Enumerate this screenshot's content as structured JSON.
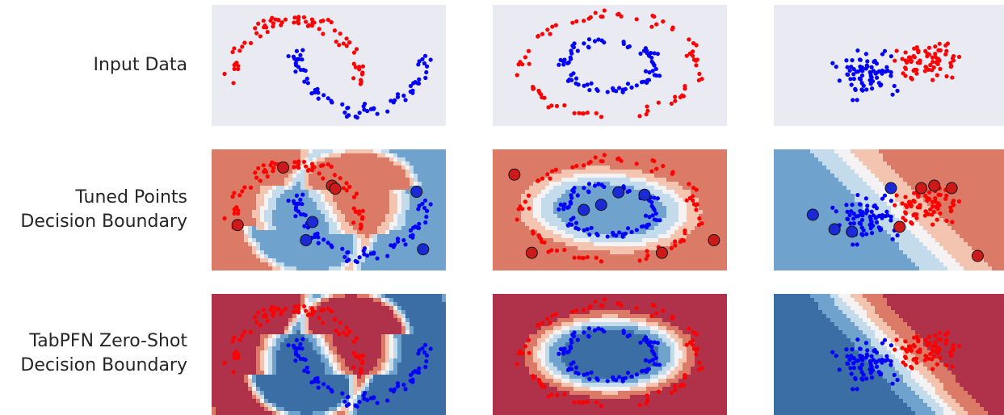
{
  "row_labels": [
    "Input Data",
    "Tuned Points\nDecision Boundary",
    "TabPFN Zero-Shot\nDecision Boundary"
  ],
  "colors": {
    "class_0": "#ff0000",
    "class_1": "#0000ff",
    "panel_background": "#eaeaf2",
    "region_palette": [
      "#3b6ea5",
      "#6fa3ce",
      "#c4dbec",
      "#f4f2f2",
      "#f3c4b0",
      "#dc7a68",
      "#b0324a"
    ]
  },
  "chart_data": [
    {
      "type": "scatter",
      "dataset": "moons",
      "row": "Input Data",
      "grid": false,
      "series": [
        {
          "class": 0,
          "marker": "small-dot",
          "color": "#ff0000",
          "x": [
            -1.0,
            -0.95,
            -0.85,
            -0.75,
            -0.6,
            -0.45,
            -0.3,
            -0.15,
            0.0,
            0.15,
            0.3,
            0.45,
            0.6,
            0.72,
            0.82,
            0.9,
            0.95,
            1.0
          ],
          "y": [
            0.1,
            0.3,
            0.5,
            0.65,
            0.78,
            0.88,
            0.95,
            0.99,
            1.0,
            0.99,
            0.95,
            0.88,
            0.78,
            0.65,
            0.5,
            0.35,
            0.2,
            0.05
          ]
        },
        {
          "class": 1,
          "marker": "small-dot",
          "color": "#0000ff",
          "x": [
            0.0,
            0.05,
            0.15,
            0.25,
            0.4,
            0.55,
            0.7,
            0.85,
            1.0,
            1.15,
            1.3,
            1.45,
            1.6,
            1.72,
            1.82,
            1.9,
            1.95,
            2.0
          ],
          "y": [
            0.45,
            0.25,
            0.05,
            -0.1,
            -0.22,
            -0.32,
            -0.38,
            -0.42,
            -0.45,
            -0.42,
            -0.38,
            -0.32,
            -0.22,
            -0.1,
            0.05,
            0.2,
            0.35,
            0.5
          ]
        }
      ]
    },
    {
      "type": "scatter",
      "dataset": "circles",
      "row": "Input Data",
      "grid": false,
      "series": [
        {
          "class": 0,
          "marker": "small-dot",
          "color": "#ff0000",
          "x": [
            -1.0,
            -0.9,
            -0.7,
            -0.4,
            0.0,
            0.4,
            0.7,
            0.9,
            1.0,
            0.9,
            0.7,
            0.4,
            0.0,
            -0.4,
            -0.7,
            -0.9
          ],
          "y": [
            0.0,
            0.4,
            0.7,
            0.9,
            1.0,
            0.9,
            0.7,
            0.4,
            0.0,
            -0.4,
            -0.7,
            -0.9,
            -1.0,
            -0.9,
            -0.7,
            -0.4
          ]
        },
        {
          "class": 1,
          "marker": "small-dot",
          "color": "#0000ff",
          "x": [
            -0.5,
            -0.4,
            -0.2,
            0.0,
            0.2,
            0.4,
            0.5,
            0.4,
            0.2,
            0.0,
            -0.2,
            -0.4,
            0.1,
            -0.1,
            0.3,
            -0.3
          ],
          "y": [
            0.0,
            0.3,
            0.45,
            0.5,
            0.45,
            0.3,
            0.0,
            -0.3,
            -0.45,
            -0.5,
            -0.45,
            -0.3,
            0.1,
            -0.1,
            -0.1,
            0.1
          ]
        }
      ]
    },
    {
      "type": "scatter",
      "dataset": "linearly-separable",
      "row": "Input Data",
      "grid": false,
      "series": [
        {
          "class": 0,
          "marker": "small-dot",
          "color": "#ff0000",
          "x": [
            0.3,
            0.5,
            0.7,
            0.9,
            1.1,
            1.3,
            1.5,
            1.7,
            0.6,
            1.0,
            1.4,
            0.8,
            1.2,
            1.6,
            2.0
          ],
          "y": [
            0.2,
            0.6,
            1.0,
            1.3,
            1.6,
            0.4,
            0.8,
            1.2,
            -0.2,
            0.0,
            0.3,
            -0.5,
            -0.4,
            1.8,
            1.5
          ]
        },
        {
          "class": 1,
          "marker": "small-dot",
          "color": "#0000ff",
          "x": [
            -1.5,
            -1.2,
            -0.9,
            -0.6,
            -0.3,
            0.0,
            0.2,
            -1.0,
            -0.5,
            0.0,
            0.4,
            -0.8,
            -0.2,
            0.3,
            0.6
          ],
          "y": [
            0.3,
            0.6,
            0.9,
            0.4,
            0.7,
            1.0,
            1.4,
            -0.2,
            -0.1,
            0.2,
            -0.4,
            -0.6,
            -0.8,
            -1.0,
            -1.4
          ]
        }
      ]
    },
    {
      "type": "scatter",
      "dataset": "moons",
      "row": "Tuned Points Decision Boundary",
      "grid": false,
      "series": [
        {
          "class": 0,
          "marker": "large-dot",
          "color": "#ff0000",
          "x": [
            -0.9,
            -0.2,
            0.55,
            0.6
          ],
          "y": [
            0.0,
            0.95,
            0.65,
            0.6
          ]
        },
        {
          "class": 1,
          "marker": "large-dot",
          "color": "#0000ff",
          "x": [
            0.25,
            0.15,
            1.85,
            1.95
          ],
          "y": [
            0.05,
            -0.25,
            0.55,
            -0.4
          ]
        }
      ]
    },
    {
      "type": "scatter",
      "dataset": "circles",
      "row": "Tuned Points Decision Boundary",
      "grid": false,
      "series": [
        {
          "class": 0,
          "marker": "large-dot",
          "color": "#ff0000",
          "x": [
            -1.1,
            -0.9,
            0.6,
            1.2
          ],
          "y": [
            0.7,
            -0.85,
            -0.85,
            -0.6
          ]
        },
        {
          "class": 1,
          "marker": "large-dot",
          "color": "#0000ff",
          "x": [
            -0.3,
            -0.1,
            0.1,
            0.4
          ],
          "y": [
            0.0,
            0.1,
            0.35,
            0.3
          ]
        }
      ]
    },
    {
      "type": "scatter",
      "dataset": "linearly-separable",
      "row": "Tuned Points Decision Boundary",
      "grid": false,
      "series": [
        {
          "class": 0,
          "marker": "large-dot",
          "color": "#ff0000",
          "x": [
            1.0,
            1.3,
            1.7,
            0.5,
            2.3
          ],
          "y": [
            1.2,
            1.3,
            1.2,
            -0.4,
            -1.6
          ]
        },
        {
          "class": 1,
          "marker": "large-dot",
          "color": "#0000ff",
          "x": [
            0.3,
            -1.5,
            -1.0,
            -0.6
          ],
          "y": [
            1.2,
            0.1,
            -0.5,
            -0.6
          ]
        }
      ]
    },
    {
      "type": "scatter",
      "dataset": "moons",
      "row": "TabPFN Zero-Shot Decision Boundary",
      "grid": false,
      "series": [
        {
          "class": 0,
          "marker": "small-dot",
          "color": "#ff0000"
        },
        {
          "class": 1,
          "marker": "small-dot",
          "color": "#0000ff"
        }
      ]
    },
    {
      "type": "scatter",
      "dataset": "circles",
      "row": "TabPFN Zero-Shot Decision Boundary",
      "grid": false,
      "series": [
        {
          "class": 0,
          "marker": "small-dot",
          "color": "#ff0000"
        },
        {
          "class": 1,
          "marker": "small-dot",
          "color": "#0000ff"
        }
      ]
    },
    {
      "type": "scatter",
      "dataset": "linearly-separable",
      "row": "TabPFN Zero-Shot Decision Boundary",
      "grid": false,
      "series": [
        {
          "class": 0,
          "marker": "small-dot",
          "color": "#ff0000"
        },
        {
          "class": 1,
          "marker": "small-dot",
          "color": "#0000ff"
        }
      ]
    }
  ]
}
